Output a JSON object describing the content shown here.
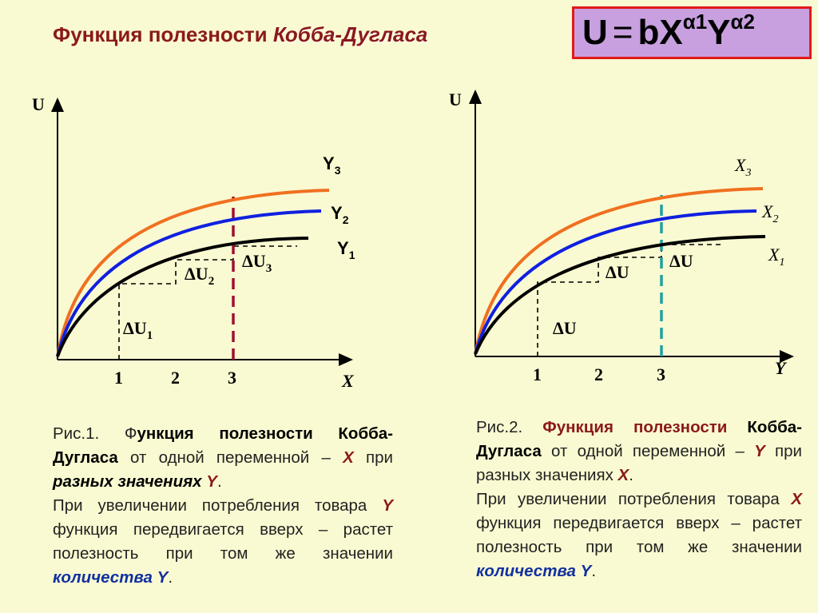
{
  "header": {
    "title_prefix": "Функция полезности ",
    "title_em": "Кобба-Дугласа",
    "formula": {
      "u": "U",
      "eq": "=",
      "b": "bX",
      "a1": "α1",
      "y": "Y",
      "a2": "α2"
    }
  },
  "figure1": {
    "y_axis": "U",
    "x_axis": "X",
    "ticks": [
      "1",
      "2",
      "3"
    ],
    "curves": [
      {
        "label": "Y",
        "sub": "3",
        "color": "#f07020"
      },
      {
        "label": "Y",
        "sub": "2",
        "color": "#1020e0"
      },
      {
        "label": "Y",
        "sub": "1",
        "color": "#000000"
      }
    ],
    "deltas": [
      {
        "d": "ΔU",
        "sub": "1"
      },
      {
        "d": "ΔU",
        "sub": "2"
      },
      {
        "d": "ΔU",
        "sub": "3"
      }
    ],
    "guide_color": "#a01030"
  },
  "figure2": {
    "y_axis": "U",
    "x_axis": "Y",
    "ticks": [
      "1",
      "2",
      "3"
    ],
    "curves": [
      {
        "label": "X",
        "sub": "3",
        "color": "#f07020"
      },
      {
        "label": "X",
        "sub": "2",
        "color": "#1020e0"
      },
      {
        "label": "X",
        "sub": "1",
        "color": "#000000"
      }
    ],
    "deltas": [
      "ΔU",
      "ΔU",
      "ΔU"
    ],
    "guide_color": "#20a0a0"
  },
  "caption1": {
    "p1_a": "Рис.1. Ф",
    "p1_b": "ункция полезности Кобба-Дугласа",
    "p1_c": " от одной переменной – ",
    "p1_x": "X",
    "p1_d": " при ",
    "p1_e": "разных значениях",
    "p1_y": "Y",
    "p1_f": ".",
    "p2_a": "При увеличении потребления товара ",
    "p2_y": "Y",
    "p2_b": " функция передвигается вверх – растет полезность при том же значении ",
    "p2_c": "количества Y",
    "p2_d": "."
  },
  "caption2": {
    "p1_a": "Рис.2. ",
    "p1_b": "Функция полезности ",
    "p1_c": "Кобба-Дугласа",
    "p1_d": " от одной переменной – ",
    "p1_y": "Y",
    "p1_e": " при разных значениях ",
    "p1_x": "X",
    "p1_f": ".",
    "p2_a": "При увеличении потребления товара ",
    "p2_x": "X",
    "p2_b": " функция передвигается вверх – растет полезность при том же значении ",
    "p2_c": "количества Y",
    "p2_d": "."
  }
}
